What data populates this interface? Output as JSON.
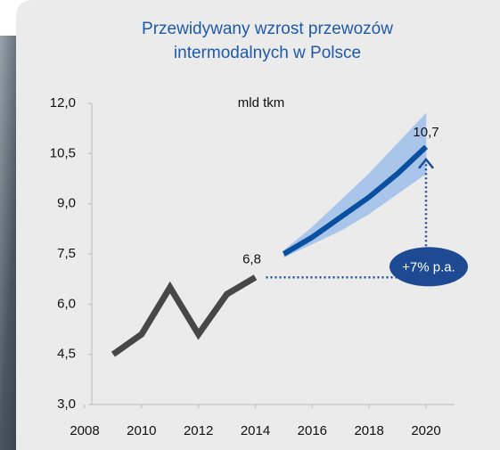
{
  "chart_data": {
    "type": "line",
    "title": [
      "Przewidywany wzrost przewozów",
      "intermodalnych w Polsce"
    ],
    "unit_label": "mld tkm",
    "annotation": "+7% p.a.",
    "xlim": [
      2008,
      2020
    ],
    "xticks": [
      2008,
      2010,
      2012,
      2014,
      2016,
      2018,
      2020
    ],
    "ylim": [
      3,
      12
    ],
    "yticks": [
      {
        "value": 3,
        "label": "3,0"
      },
      {
        "value": 4.5,
        "label": "4,5"
      },
      {
        "value": 6,
        "label": "6,0"
      },
      {
        "value": 7.5,
        "label": "7,5"
      },
      {
        "value": 9,
        "label": "9,0"
      },
      {
        "value": 10.5,
        "label": "10,5"
      },
      {
        "value": 12,
        "label": "12,0"
      }
    ],
    "series": [
      {
        "color": "#474747",
        "x": [
          2009,
          2010,
          2011,
          2012,
          2013,
          2014
        ],
        "values": [
          4.5,
          5.1,
          6.5,
          5.1,
          6.3,
          6.8
        ],
        "value_labels": [
          null,
          null,
          null,
          null,
          null,
          "6,8"
        ]
      },
      {
        "color": "#0a4fa0",
        "x": [
          2015,
          2016,
          2017,
          2018,
          2019,
          2020
        ],
        "values": [
          7.5,
          8.0,
          8.6,
          9.2,
          9.9,
          10.7
        ],
        "value_labels": [
          null,
          null,
          null,
          null,
          null,
          "10,7"
        ]
      }
    ],
    "band": {
      "color": "#a9c6ea",
      "x": [
        2015,
        2016,
        2017,
        2018,
        2019,
        2020
      ],
      "lower": [
        7.4,
        7.8,
        8.2,
        8.7,
        9.3,
        9.9
      ],
      "upper": [
        7.6,
        8.3,
        9.1,
        9.9,
        10.8,
        11.7
      ]
    }
  }
}
